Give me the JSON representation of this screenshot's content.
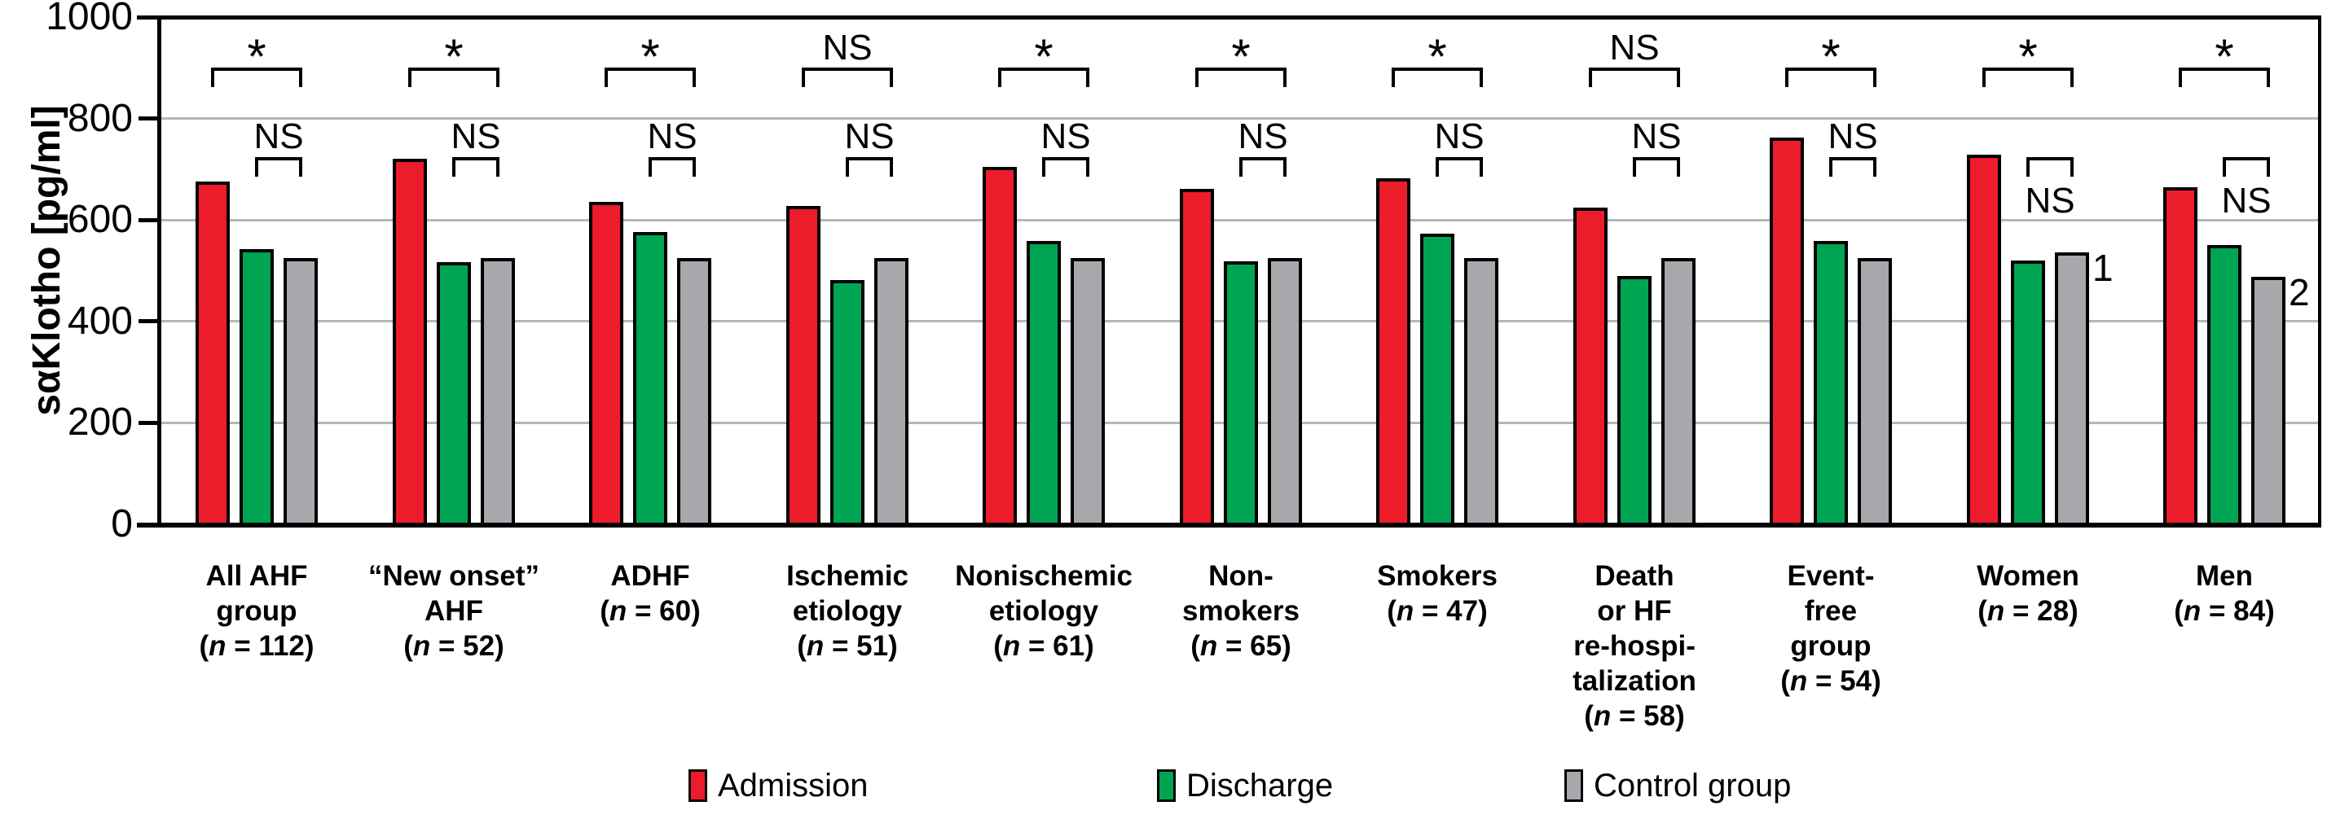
{
  "chart_data": {
    "type": "bar",
    "title": "",
    "ylabel": "sαKlotho [pg/ml]",
    "xlabel": "",
    "ylim": [
      0,
      1000
    ],
    "yticks": [
      0,
      200,
      400,
      600,
      800,
      1000
    ],
    "grid": true,
    "legend_position": "bottom",
    "colors": {
      "admission": "#ec1c2b",
      "discharge": "#00a553",
      "control": "#a6a8ab",
      "gridline": "#b4b6b8",
      "axis": "#000000"
    },
    "series_names": [
      "Admission",
      "Discharge",
      "Control group"
    ],
    "legend": [
      {
        "label": "Admission",
        "color_key": "admission"
      },
      {
        "label": "Discharge",
        "color_key": "discharge"
      },
      {
        "label": "Control group",
        "color_key": "control"
      }
    ],
    "significance_note": "top bracket compares Admission vs Control group; lower bracket compares Discharge vs Control group",
    "groups": [
      {
        "label_lines": [
          "All AHF",
          "group",
          "(n = 112)"
        ],
        "admission": 675,
        "discharge": 542,
        "control": 525,
        "top_sig": "*",
        "pair_sig": "NS",
        "pair_sig_below": false,
        "footnote": ""
      },
      {
        "label_lines": [
          "“New onset”",
          "AHF",
          "(n = 52)"
        ],
        "admission": 720,
        "discharge": 517,
        "control": 525,
        "top_sig": "*",
        "pair_sig": "NS",
        "pair_sig_below": false,
        "footnote": ""
      },
      {
        "label_lines": [
          "ADHF",
          "(n = 60)"
        ],
        "admission": 635,
        "discharge": 577,
        "control": 525,
        "top_sig": "*",
        "pair_sig": "NS",
        "pair_sig_below": false,
        "footnote": ""
      },
      {
        "label_lines": [
          "Ischemic",
          "etiology",
          "(n = 51)"
        ],
        "admission": 628,
        "discharge": 481,
        "control": 525,
        "top_sig": "NS",
        "pair_sig": "NS",
        "pair_sig_below": false,
        "footnote": ""
      },
      {
        "label_lines": [
          "Nonischemic",
          "etiology",
          "(n = 61)"
        ],
        "admission": 705,
        "discharge": 558,
        "control": 525,
        "top_sig": "*",
        "pair_sig": "NS",
        "pair_sig_below": false,
        "footnote": ""
      },
      {
        "label_lines": [
          "Non-",
          "smokers",
          "(n = 65)"
        ],
        "admission": 662,
        "discharge": 518,
        "control": 525,
        "top_sig": "*",
        "pair_sig": "NS",
        "pair_sig_below": false,
        "footnote": ""
      },
      {
        "label_lines": [
          "Smokers",
          "(n = 47)"
        ],
        "admission": 682,
        "discharge": 573,
        "control": 525,
        "top_sig": "*",
        "pair_sig": "NS",
        "pair_sig_below": false,
        "footnote": ""
      },
      {
        "label_lines": [
          "Death",
          "or HF",
          "re-hospi-",
          "talization",
          "(n = 58)"
        ],
        "admission": 624,
        "discharge": 490,
        "control": 525,
        "top_sig": "NS",
        "pair_sig": "NS",
        "pair_sig_below": false,
        "footnote": ""
      },
      {
        "label_lines": [
          "Event-",
          "free",
          "group",
          "(n = 54)"
        ],
        "admission": 763,
        "discharge": 558,
        "control": 525,
        "top_sig": "*",
        "pair_sig": "NS",
        "pair_sig_below": false,
        "footnote": ""
      },
      {
        "label_lines": [
          "Women",
          "(n = 28)"
        ],
        "admission": 729,
        "discharge": 520,
        "control": 536,
        "top_sig": "*",
        "pair_sig": "NS",
        "pair_sig_below": true,
        "footnote": "1"
      },
      {
        "label_lines": [
          "Men",
          "(n = 84)"
        ],
        "admission": 664,
        "discharge": 550,
        "control": 488,
        "top_sig": "*",
        "pair_sig": "NS",
        "pair_sig_below": true,
        "footnote": "2"
      }
    ]
  }
}
